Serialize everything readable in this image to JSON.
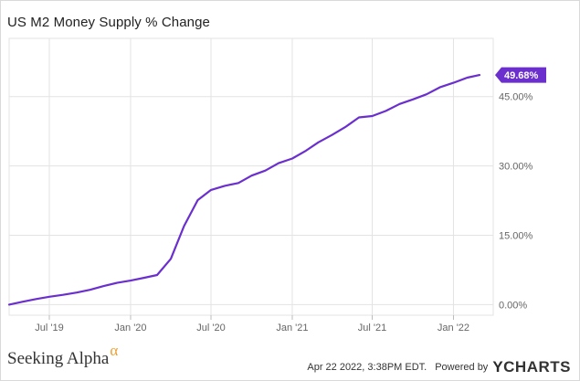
{
  "title": "US M2 Money Supply % Change",
  "chart_data": {
    "type": "line",
    "title": "US M2 Money Supply % Change",
    "xlabel": "",
    "ylabel": "",
    "x_tick_labels": [
      "Jul '19",
      "Jan '20",
      "Jul '20",
      "Jan '21",
      "Jul '21",
      "Jan '22"
    ],
    "y_tick_labels": [
      "0.00%",
      "15.00%",
      "30.00%",
      "45.00%"
    ],
    "y_ticks": [
      0,
      15,
      30,
      45
    ],
    "ylim": [
      -2.3,
      57.6
    ],
    "xlim": [
      "2019-04-01",
      "2022-04-01"
    ],
    "grid": true,
    "last_value_label": "49.68%",
    "series": [
      {
        "color": "#6b2fce",
        "points": [
          [
            "2019-04-01",
            0.0
          ],
          [
            "2019-05-01",
            0.6
          ],
          [
            "2019-06-01",
            1.2
          ],
          [
            "2019-07-01",
            1.7
          ],
          [
            "2019-08-01",
            2.1
          ],
          [
            "2019-09-01",
            2.6
          ],
          [
            "2019-10-01",
            3.2
          ],
          [
            "2019-11-01",
            4.0
          ],
          [
            "2019-12-01",
            4.7
          ],
          [
            "2020-01-01",
            5.2
          ],
          [
            "2020-02-01",
            5.8
          ],
          [
            "2020-03-01",
            6.4
          ],
          [
            "2020-04-01",
            9.9
          ],
          [
            "2020-05-01",
            17.0
          ],
          [
            "2020-06-01",
            22.6
          ],
          [
            "2020-07-01",
            24.8
          ],
          [
            "2020-08-01",
            25.7
          ],
          [
            "2020-09-01",
            26.3
          ],
          [
            "2020-10-01",
            27.9
          ],
          [
            "2020-11-01",
            29.0
          ],
          [
            "2020-12-01",
            30.6
          ],
          [
            "2021-01-01",
            31.6
          ],
          [
            "2021-02-01",
            33.3
          ],
          [
            "2021-03-01",
            35.1
          ],
          [
            "2021-04-01",
            36.7
          ],
          [
            "2021-05-01",
            38.4
          ],
          [
            "2021-06-01",
            40.5
          ],
          [
            "2021-07-01",
            40.8
          ],
          [
            "2021-08-01",
            41.9
          ],
          [
            "2021-09-01",
            43.4
          ],
          [
            "2021-10-01",
            44.4
          ],
          [
            "2021-11-01",
            45.5
          ],
          [
            "2021-12-01",
            47.0
          ],
          [
            "2022-01-01",
            48.0
          ],
          [
            "2022-02-01",
            49.1
          ],
          [
            "2022-03-01",
            49.68
          ]
        ]
      }
    ]
  },
  "footer": {
    "brand_left": "Seeking Alpha",
    "brand_left_symbol": "α",
    "timestamp": "Apr 22 2022, 3:38PM EDT.",
    "powered_by": "Powered by",
    "brand_right": "CHARTS",
    "brand_right_symbol": "Y"
  },
  "colors": {
    "line": "#6b2fce",
    "grid": "#e3e3e3",
    "badge": "#6b2fce",
    "alpha_accent": "#f0a030"
  }
}
